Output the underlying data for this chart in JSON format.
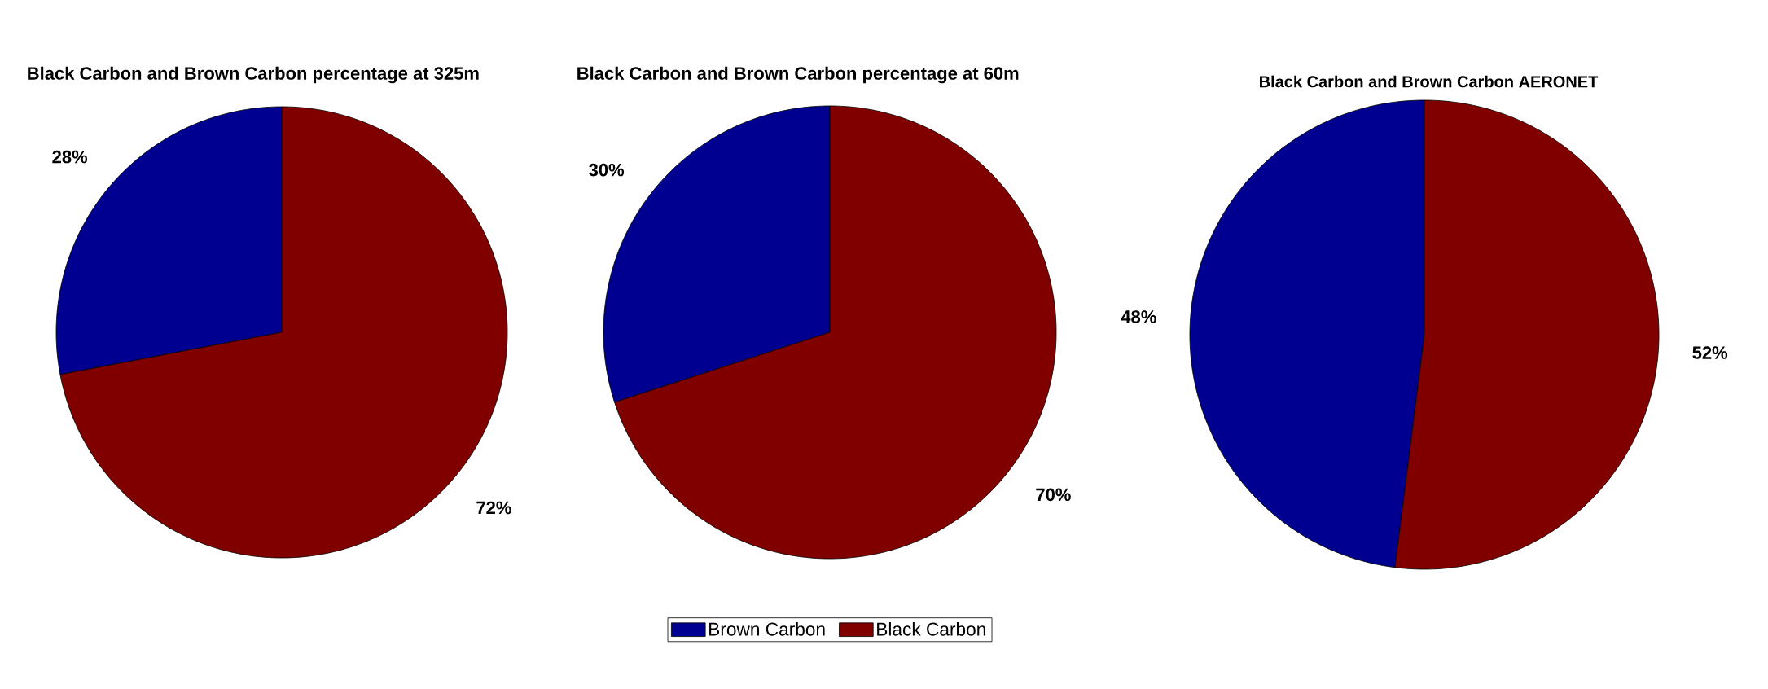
{
  "chart_data": [
    {
      "type": "pie",
      "title": "Black Carbon and Brown Carbon percentage at 325m",
      "categories": [
        null,
        null
      ],
      "values": [
        28,
        72
      ],
      "colors": [
        "#000090",
        "#800000"
      ],
      "value_labels": [
        "28%",
        "72%"
      ]
    },
    {
      "type": "pie",
      "title": "Black Carbon and Brown Carbon percentage at 60m",
      "categories": [
        "Brown Carbon",
        "Black Carbon"
      ],
      "values": [
        30,
        70
      ],
      "colors": [
        "#000090",
        "#800000"
      ],
      "value_labels": [
        "30%",
        "70%"
      ],
      "legend": "bottom"
    },
    {
      "type": "pie",
      "title": "Black Carbon and Brown Carbon AERONET",
      "categories": [
        null,
        null
      ],
      "values": [
        48,
        52
      ],
      "colors": [
        "#000090",
        "#800000"
      ],
      "value_labels": [
        "48%",
        "52%"
      ]
    }
  ]
}
